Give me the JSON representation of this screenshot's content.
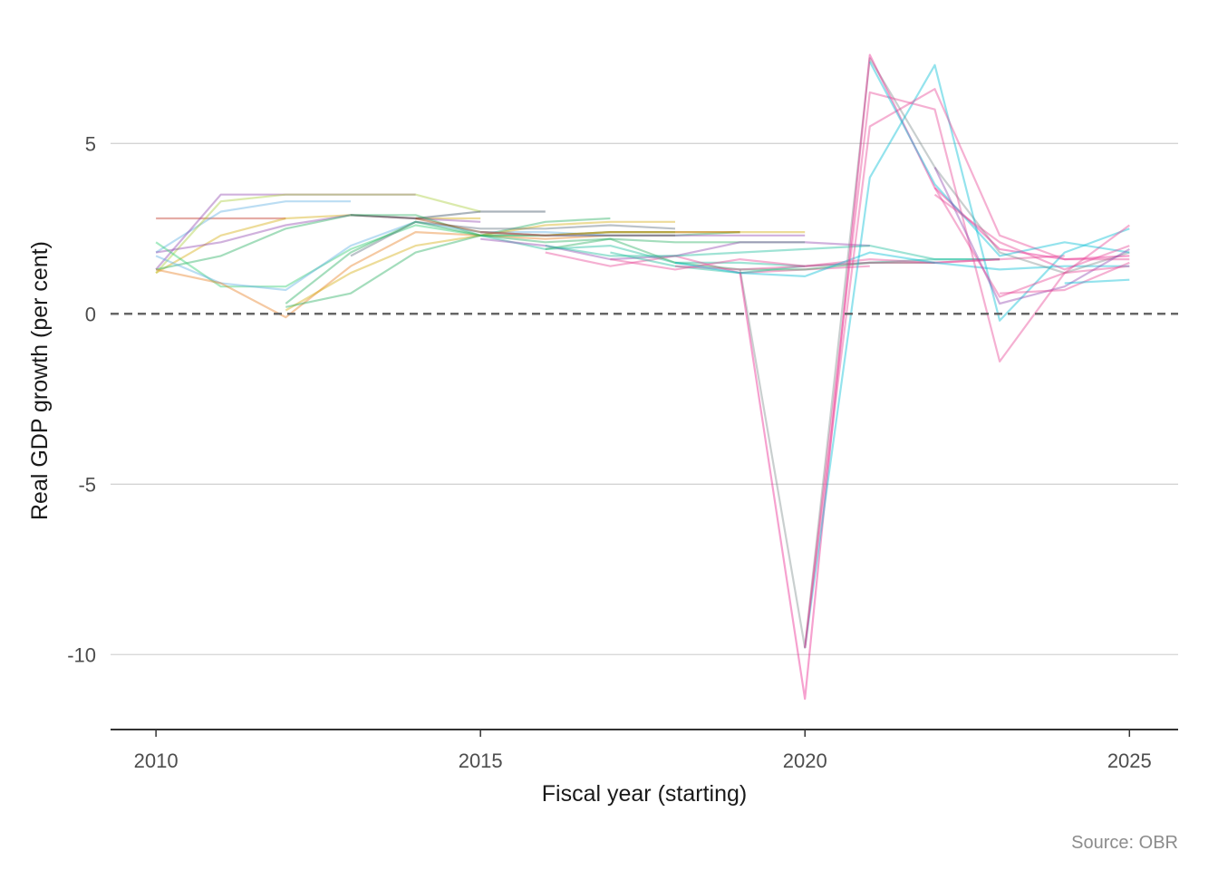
{
  "chart_data": {
    "type": "line",
    "title": "",
    "xlabel": "Fiscal year (starting)",
    "ylabel": "Real GDP growth (per cent)",
    "caption": "Source: OBR",
    "xlim": [
      2009.3,
      2025.75
    ],
    "ylim": [
      -12.2,
      8.2
    ],
    "x_ticks": [
      2010,
      2015,
      2020,
      2025
    ],
    "y_ticks": [
      5,
      0,
      -5,
      -10
    ],
    "y_tick_labels": [
      "5",
      "0",
      "-5",
      "-10"
    ],
    "grid": "horizontal",
    "zero_line": "dashed",
    "legend": "none",
    "series": [
      {
        "color": "#c0392b",
        "x": [
          2010,
          2011,
          2012
        ],
        "values": [
          2.8,
          2.8,
          2.8
        ]
      },
      {
        "color": "#5dade2",
        "x": [
          2010,
          2011,
          2012,
          2013
        ],
        "values": [
          1.8,
          3.0,
          3.3,
          3.3
        ]
      },
      {
        "color": "#8e44ad",
        "x": [
          2010,
          2011,
          2012,
          2013,
          2014
        ],
        "values": [
          1.3,
          3.5,
          3.5,
          3.5,
          3.5
        ]
      },
      {
        "color": "#a9cc3a",
        "x": [
          2010,
          2011,
          2012,
          2013,
          2014,
          2015
        ],
        "values": [
          1.2,
          3.3,
          3.5,
          3.5,
          3.5,
          3.0
        ]
      },
      {
        "color": "#d4ac0d",
        "x": [
          2010,
          2011,
          2012,
          2013,
          2014,
          2015
        ],
        "values": [
          1.2,
          2.3,
          2.8,
          2.9,
          2.8,
          2.8
        ]
      },
      {
        "color": "#8e44ad",
        "x": [
          2010,
          2011,
          2012,
          2013,
          2014,
          2015
        ],
        "values": [
          1.8,
          2.1,
          2.6,
          2.9,
          2.8,
          2.7
        ]
      },
      {
        "color": "#34495e",
        "x": [
          2013,
          2014,
          2015,
          2016
        ],
        "values": [
          2.9,
          2.8,
          3.0,
          3.0
        ]
      },
      {
        "color": "#27ae60",
        "x": [
          2010,
          2011,
          2012,
          2013,
          2014,
          2015,
          2016,
          2017
        ],
        "values": [
          1.3,
          1.7,
          2.5,
          2.9,
          2.9,
          2.3,
          2.7,
          2.8
        ]
      },
      {
        "color": "#2ecc71",
        "x": [
          2010,
          2011,
          2012,
          2013,
          2014,
          2015,
          2016,
          2017,
          2018
        ],
        "values": [
          2.1,
          0.8,
          0.8,
          1.9,
          2.6,
          2.3,
          2.3,
          2.4,
          2.4
        ]
      },
      {
        "color": "#5dade2",
        "x": [
          2010,
          2011,
          2012,
          2013,
          2014,
          2015,
          2016,
          2017,
          2018
        ],
        "values": [
          1.7,
          0.9,
          0.7,
          2.0,
          2.7,
          2.4,
          2.4,
          2.3,
          2.3
        ]
      },
      {
        "color": "#e67e22",
        "x": [
          2010,
          2011,
          2012,
          2013,
          2014,
          2015,
          2016,
          2017,
          2018
        ],
        "values": [
          1.3,
          0.9,
          -0.1,
          1.4,
          2.4,
          2.3,
          2.2,
          2.3,
          2.3
        ]
      },
      {
        "color": "#d4ac0d",
        "x": [
          2012,
          2013,
          2014,
          2015,
          2016,
          2017,
          2018
        ],
        "values": [
          0.1,
          1.2,
          2.0,
          2.3,
          2.6,
          2.7,
          2.7
        ]
      },
      {
        "color": "#5d6d7e",
        "x": [
          2013,
          2014,
          2015,
          2016,
          2017,
          2018
        ],
        "values": [
          1.7,
          2.7,
          2.5,
          2.5,
          2.6,
          2.5
        ]
      },
      {
        "color": "#27ae60",
        "x": [
          2012,
          2013,
          2014,
          2015,
          2016,
          2017,
          2018,
          2019
        ],
        "values": [
          0.3,
          1.8,
          2.7,
          2.3,
          2.3,
          2.3,
          2.3,
          2.4
        ]
      },
      {
        "color": "#a04000",
        "x": [
          2014,
          2015,
          2016,
          2017,
          2018,
          2019
        ],
        "values": [
          2.8,
          2.4,
          2.3,
          2.4,
          2.4,
          2.4
        ]
      },
      {
        "color": "#27ae60",
        "x": [
          2012,
          2013,
          2014,
          2015,
          2016,
          2017,
          2018,
          2019,
          2020
        ],
        "values": [
          0.2,
          0.6,
          1.8,
          2.3,
          2.1,
          2.2,
          2.1,
          2.1,
          2.1
        ]
      },
      {
        "color": "#d4ac0d",
        "x": [
          2015,
          2016,
          2017,
          2018,
          2019,
          2020
        ],
        "values": [
          2.4,
          2.3,
          2.4,
          2.4,
          2.4,
          2.4
        ]
      },
      {
        "color": "#8e44ad",
        "x": [
          2015,
          2016,
          2017,
          2018,
          2019,
          2020
        ],
        "values": [
          2.4,
          2.3,
          2.3,
          2.3,
          2.3,
          2.3
        ]
      },
      {
        "color": "#1abc9c",
        "x": [
          2015,
          2016,
          2017,
          2018,
          2019,
          2020
        ],
        "values": [
          2.3,
          1.9,
          2.0,
          1.5,
          1.5,
          1.4
        ]
      },
      {
        "color": "#8e44ad",
        "x": [
          2015,
          2016,
          2017,
          2018,
          2019,
          2020,
          2021
        ],
        "values": [
          2.2,
          2.0,
          1.6,
          1.7,
          2.1,
          2.1,
          2.0
        ]
      },
      {
        "color": "#e84393",
        "x": [
          2016,
          2017,
          2018,
          2019,
          2020,
          2021
        ],
        "values": [
          1.8,
          1.4,
          1.7,
          1.2,
          1.3,
          1.4
        ]
      },
      {
        "color": "#1abc9c",
        "x": [
          2017,
          2018,
          2019,
          2020,
          2021,
          2022,
          2023
        ],
        "values": [
          1.8,
          1.4,
          1.2,
          1.4,
          1.5,
          1.6,
          1.6
        ]
      },
      {
        "color": "#27ae60",
        "x": [
          2016,
          2017,
          2018,
          2019,
          2020,
          2021,
          2022
        ],
        "values": [
          1.9,
          2.2,
          1.5,
          1.3,
          1.3,
          1.5,
          1.5
        ]
      },
      {
        "color": "#1abc9c",
        "x": [
          2016,
          2017,
          2018,
          2019,
          2020,
          2021,
          2022,
          2023
        ],
        "values": [
          2.0,
          1.7,
          1.7,
          1.8,
          1.9,
          2.0,
          1.6,
          1.6
        ]
      },
      {
        "color": "#e84393",
        "x": [
          2017,
          2018,
          2019,
          2020,
          2021,
          2022,
          2023
        ],
        "values": [
          1.6,
          1.3,
          1.6,
          1.4,
          1.5,
          1.5,
          1.6
        ]
      },
      {
        "color": "#e84393",
        "x": [
          2018,
          2019,
          2020,
          2021,
          2022,
          2023,
          2024
        ],
        "values": [
          1.4,
          1.3,
          1.4,
          1.6,
          1.5,
          1.6,
          1.7
        ]
      },
      {
        "color": "#00bcd4",
        "x": [
          2018,
          2019,
          2020,
          2021,
          2022,
          2023,
          2024,
          2025
        ],
        "values": [
          1.5,
          1.2,
          1.1,
          1.8,
          1.5,
          1.3,
          1.4,
          1.4
        ]
      },
      {
        "color": "#7f8c8d",
        "x": [
          2019,
          2020,
          2021,
          2022,
          2023,
          2024,
          2025
        ],
        "values": [
          1.3,
          -9.8,
          7.5,
          4.3,
          1.8,
          1.2,
          1.8
        ]
      },
      {
        "color": "#e91e8c",
        "x": [
          2019,
          2020,
          2021,
          2022,
          2023,
          2024,
          2025
        ],
        "values": [
          1.2,
          -11.3,
          7.6,
          3.7,
          1.9,
          1.6,
          1.7
        ]
      },
      {
        "color": "#00bcd4",
        "x": [
          2020,
          2021,
          2022,
          2023,
          2024,
          2025
        ],
        "values": [
          -9.8,
          4.0,
          7.3,
          -0.2,
          1.8,
          2.5
        ]
      },
      {
        "color": "#e84393",
        "x": [
          2020,
          2021,
          2022,
          2023,
          2024,
          2025
        ],
        "values": [
          -9.8,
          6.5,
          6.0,
          -1.4,
          1.2,
          2.6
        ]
      },
      {
        "color": "#e84393",
        "x": [
          2020,
          2021,
          2022,
          2023,
          2024,
          2025
        ],
        "values": [
          -9.8,
          5.5,
          6.6,
          2.3,
          1.6,
          1.6
        ]
      },
      {
        "color": "#00bcd4",
        "x": [
          2021,
          2022,
          2023,
          2024,
          2025
        ],
        "values": [
          7.4,
          3.8,
          1.7,
          2.1,
          1.8
        ]
      },
      {
        "color": "#8e44ad",
        "x": [
          2022,
          2023,
          2024,
          2025
        ],
        "values": [
          4.3,
          0.3,
          0.8,
          1.9
        ]
      },
      {
        "color": "#e84393",
        "x": [
          2022,
          2023,
          2024,
          2025
        ],
        "values": [
          3.7,
          0.5,
          1.2,
          1.4
        ]
      },
      {
        "color": "#e84393",
        "x": [
          2023,
          2024,
          2025
        ],
        "values": [
          0.6,
          0.7,
          1.5
        ]
      },
      {
        "color": "#00bcd4",
        "x": [
          2024,
          2025
        ],
        "values": [
          0.9,
          1.0
        ]
      },
      {
        "color": "#e84393",
        "x": [
          2022,
          2023,
          2024,
          2025
        ],
        "values": [
          3.5,
          2.1,
          1.3,
          2.0
        ]
      }
    ]
  }
}
